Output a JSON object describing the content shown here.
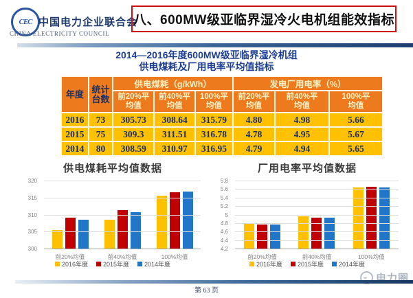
{
  "header": {
    "org_cn": "中国电力企业联合会",
    "org_en": "CHINA ELECTRICITY COUNCIL",
    "logo_monogram": "CEC",
    "title": "八、600MW级亚临界湿冷火电机组能效指标"
  },
  "palette": {
    "title_border_red": "#CF1010",
    "table_header_orange": "#ED7A1C",
    "table_body_yellow": "#FFC000",
    "navy_text": "#1A3064",
    "table_title_blue": "#1C3F94",
    "series_yellow": "#FFC000",
    "series_red": "#C00000",
    "series_blue": "#2176C7"
  },
  "table": {
    "title_line1": "2014—2016年度600MW级亚临界湿冷机组",
    "title_line2": "供电煤耗及厂用电率平均值指标",
    "col_year": "年度",
    "col_units": "统计台数",
    "group_coal": "供电煤耗（g/kWh）",
    "group_aux": "发电厂用电率（%）",
    "subheaders": [
      "前20%平均值",
      "前40%平均值",
      "100%平均值",
      "前20%平均值",
      "前40%平均值",
      "100%平均值"
    ],
    "rows": [
      {
        "year": "2016",
        "units": "73",
        "cells": [
          "305.73",
          "308.64",
          "315.79",
          "4.80",
          "4.98",
          "5.66"
        ]
      },
      {
        "year": "2015",
        "units": "75",
        "cells": [
          "309.3",
          "311.51",
          "316.78",
          "4.78",
          "4.95",
          "5.67"
        ]
      },
      {
        "year": "2014",
        "units": "80",
        "cells": [
          "308.59",
          "310.97",
          "316.95",
          "4.79",
          "4.94",
          "5.65"
        ]
      }
    ]
  },
  "chart_data": [
    {
      "type": "bar",
      "title": "供电煤耗平均值数据",
      "categories": [
        "前20%均值",
        "前40%均值",
        "100%均值"
      ],
      "series": [
        {
          "name": "2016年度",
          "color": "#FFC000",
          "values": [
            305.73,
            308.64,
            315.79
          ]
        },
        {
          "name": "2015年度",
          "color": "#C00000",
          "values": [
            309.3,
            311.51,
            316.78
          ]
        },
        {
          "name": "2014年度",
          "color": "#2176C7",
          "values": [
            308.59,
            310.97,
            316.95
          ]
        }
      ],
      "ylim": [
        300,
        320
      ],
      "ytick_step": 5,
      "grid": true,
      "legend_position": "bottom"
    },
    {
      "type": "bar",
      "title": "厂用电率平均值数据",
      "categories": [
        "前20%均值",
        "前40%均值",
        "100%均值"
      ],
      "series": [
        {
          "name": "2016年度",
          "color": "#FFC000",
          "values": [
            4.8,
            4.98,
            5.66
          ]
        },
        {
          "name": "2015年度",
          "color": "#C00000",
          "values": [
            4.78,
            4.95,
            5.67
          ]
        },
        {
          "name": "2014年度",
          "color": "#2176C7",
          "values": [
            4.79,
            4.94,
            5.65
          ]
        }
      ],
      "ylim": [
        4.2,
        5.8
      ],
      "ytick_step": 0.2,
      "grid": true,
      "legend_position": "bottom"
    }
  ],
  "footer": {
    "page": "第 63 页",
    "watermark": "电力圈"
  }
}
